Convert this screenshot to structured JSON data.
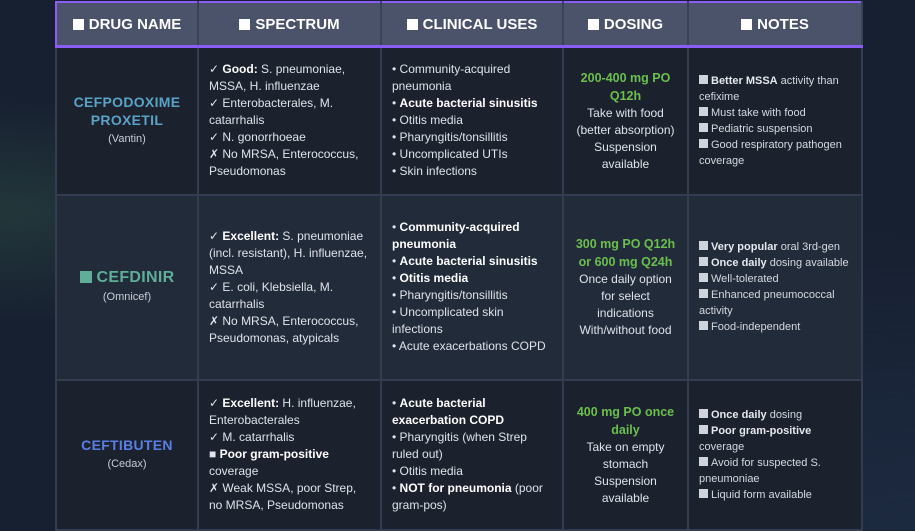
{
  "colors": {
    "border": "#8b5cf6",
    "dosing": "#6bbf4e"
  },
  "headers": [
    {
      "icon": "square-icon",
      "label": "DRUG NAME"
    },
    {
      "icon": "square-icon",
      "label": "SPECTRUM"
    },
    {
      "icon": "square-icon",
      "label": "CLINICAL USES"
    },
    {
      "icon": "square-icon",
      "label": "DOSING"
    },
    {
      "icon": "square-icon",
      "label": "NOTES"
    }
  ],
  "rows": [
    {
      "name": "CEFPODOXIME PROXETIL",
      "brand": "(Vantin)",
      "name_color": "#5aa2c6",
      "name_icon": "",
      "spectrum": [
        {
          "p": "✓ ",
          "b": "Good:",
          "t": " S. pneumoniae, MSSA, H. influenzae"
        },
        {
          "p": "✓ ",
          "b": "",
          "t": "Enterobacterales, M. catarrhalis"
        },
        {
          "p": "✓ ",
          "b": "",
          "t": "N. gonorrhoeae"
        },
        {
          "p": "✗ ",
          "b": "",
          "t": "No MRSA, Enterococcus, Pseudomonas"
        }
      ],
      "uses": [
        {
          "p": "• ",
          "b": "",
          "t": "Community-acquired pneumonia"
        },
        {
          "p": "• ",
          "b": "Acute bacterial sinusitis",
          "t": ""
        },
        {
          "p": "• ",
          "b": "",
          "t": "Otitis media"
        },
        {
          "p": "• ",
          "b": "",
          "t": "Pharyngitis/tonsillitis"
        },
        {
          "p": "• ",
          "b": "",
          "t": "Uncomplicated UTIs"
        },
        {
          "p": "• ",
          "b": "",
          "t": "Skin infections"
        }
      ],
      "dose_main": "200-400 mg PO Q12h",
      "dose_notes": [
        "Take with food",
        "(better absorption)",
        "Suspension available"
      ],
      "notes": [
        {
          "b": "Better MSSA",
          "t": " activity than cefixime"
        },
        {
          "b": "",
          "t": "Must take with food"
        },
        {
          "b": "",
          "t": "Pediatric suspension"
        },
        {
          "b": "",
          "t": "Good respiratory pathogen coverage"
        }
      ]
    },
    {
      "name": "CEFDINIR",
      "brand": "(Omnicef)",
      "name_color": "#5fae98",
      "name_icon": "square-icon",
      "spectrum": [
        {
          "p": "✓ ",
          "b": "Excellent:",
          "t": " S. pneumoniae (incl. resistant), H. influenzae, MSSA"
        },
        {
          "p": "✓ ",
          "b": "",
          "t": "E. coli, Klebsiella, M. catarrhalis"
        },
        {
          "p": "✗ ",
          "b": "",
          "t": "No MRSA, Enterococcus, Pseudomonas, atypicals"
        }
      ],
      "uses": [
        {
          "p": "• ",
          "b": "Community-acquired pneumonia",
          "t": ""
        },
        {
          "p": "• ",
          "b": "Acute bacterial sinusitis",
          "t": ""
        },
        {
          "p": "• ",
          "b": "Otitis media",
          "t": ""
        },
        {
          "p": "• ",
          "b": "",
          "t": "Pharyngitis/tonsillitis"
        },
        {
          "p": "• ",
          "b": "",
          "t": "Uncomplicated skin infections"
        },
        {
          "p": "• ",
          "b": "",
          "t": "Acute exacerbations COPD"
        }
      ],
      "dose_main": "300 mg PO Q12h or 600 mg Q24h",
      "dose_notes": [
        "Once daily option for select indications",
        "With/without food"
      ],
      "notes": [
        {
          "b": "Very popular",
          "t": " oral 3rd-gen"
        },
        {
          "b": "Once daily",
          "t": " dosing available"
        },
        {
          "b": "",
          "t": "Well-tolerated"
        },
        {
          "b": "",
          "t": "Enhanced pneumococcal activity"
        },
        {
          "b": "",
          "t": "Food-independent"
        }
      ]
    },
    {
      "name": "CEFTIBUTEN",
      "brand": "(Cedax)",
      "name_color": "#5a7ee6",
      "name_icon": "",
      "spectrum": [
        {
          "p": "✓ ",
          "b": "Excellent:",
          "t": " H. influenzae, Enterobacterales"
        },
        {
          "p": "✓ ",
          "b": "",
          "t": "M. catarrhalis"
        },
        {
          "p": "■ ",
          "b": "Poor gram-positive",
          "t": " coverage"
        },
        {
          "p": "✗ ",
          "b": "",
          "t": "Weak MSSA, poor Strep, no MRSA, Pseudomonas"
        }
      ],
      "uses": [
        {
          "p": "• ",
          "b": "Acute bacterial exacerbation COPD",
          "t": ""
        },
        {
          "p": "• ",
          "b": "",
          "t": "Pharyngitis (when Strep ruled out)"
        },
        {
          "p": "• ",
          "b": "",
          "t": "Otitis media"
        },
        {
          "p": "• ",
          "b": "NOT for pneumonia",
          "t": " (poor gram-pos)"
        }
      ],
      "dose_main": "400 mg PO once daily",
      "dose_notes": [
        "Take on empty stomach",
        "Suspension available"
      ],
      "notes": [
        {
          "b": "Once daily",
          "t": " dosing"
        },
        {
          "b": "Poor gram-positive",
          "t": " coverage"
        },
        {
          "b": "",
          "t": "Avoid for suspected S. pneumoniae"
        },
        {
          "b": "",
          "t": "Liquid form available"
        }
      ]
    }
  ]
}
